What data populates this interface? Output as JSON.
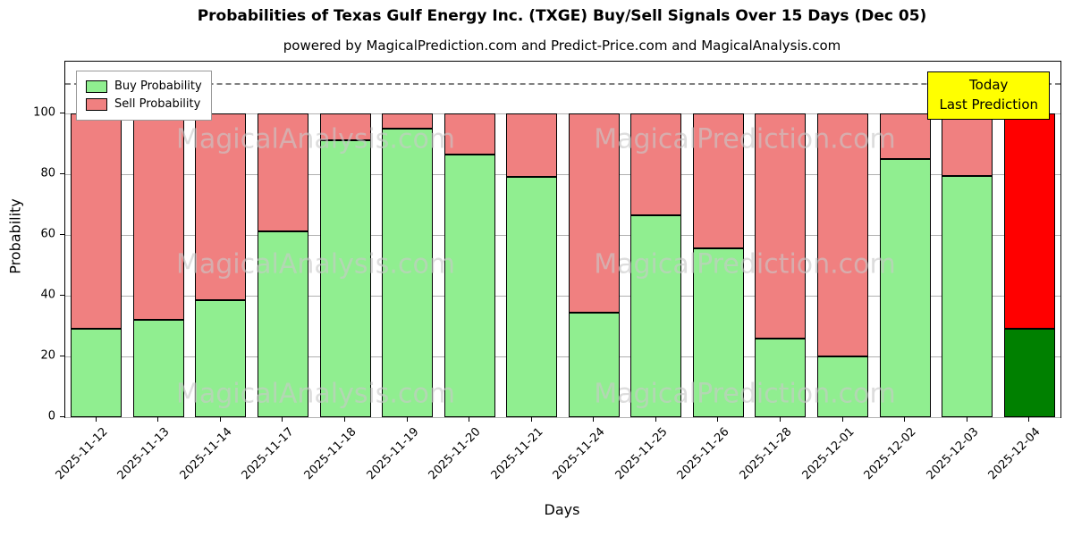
{
  "chart": {
    "title": "Probabilities of Texas Gulf Energy Inc. (TXGE) Buy/Sell Signals Over 15 Days (Dec 05)",
    "subtitle": "powered by MagicalPrediction.com and Predict-Price.com and MagicalAnalysis.com",
    "xlabel": "Days",
    "ylabel": "Probability",
    "annotation": {
      "line1": "Today",
      "line2": "Last Prediction",
      "bg_color": "#ffff00"
    },
    "watermarks": [
      "MagicalAnalysis.com",
      "MagicalPrediction.com"
    ]
  },
  "chart_data": {
    "type": "bar",
    "stacked": true,
    "categories": [
      "2025-11-12",
      "2025-11-13",
      "2025-11-14",
      "2025-11-17",
      "2025-11-18",
      "2025-11-19",
      "2025-11-20",
      "2025-11-21",
      "2025-11-24",
      "2025-11-25",
      "2025-11-26",
      "2025-11-28",
      "2025-12-01",
      "2025-12-02",
      "2025-12-03",
      "2025-12-04"
    ],
    "series": [
      {
        "name": "Buy Probability",
        "color": "#90ee90",
        "values": [
          29,
          32,
          38.5,
          61,
          91,
          95,
          86.5,
          79,
          34.5,
          66.5,
          55.5,
          26,
          20,
          85,
          79.5,
          29
        ]
      },
      {
        "name": "Sell Probability",
        "color": "#f08080",
        "values": [
          71,
          68,
          61.5,
          39,
          9,
          5,
          13.5,
          21,
          65.5,
          33.5,
          44.5,
          74,
          80,
          15,
          20.5,
          71
        ]
      }
    ],
    "stack_total": 100,
    "last_bar_colors": {
      "buy": "#008000",
      "sell": "#ff0000"
    },
    "yticks": [
      0,
      20,
      40,
      60,
      80,
      100
    ],
    "ylim": [
      0,
      117
    ],
    "dashed_line_y": 110,
    "legend_position": "upper left",
    "grid": "horizontal"
  }
}
